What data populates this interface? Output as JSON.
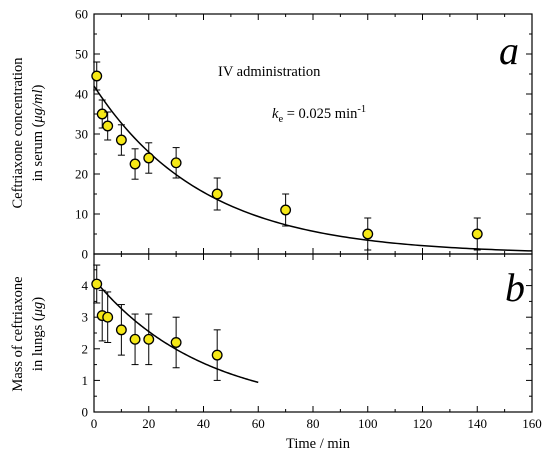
{
  "chart_data": [
    {
      "panel": "a",
      "type": "scatter",
      "panel_label": "a",
      "annotation": "IV administration",
      "rate_label": {
        "symbol": "k",
        "subscript": "e",
        "text": " = 0.025 min",
        "superscript": "-1"
      },
      "ylabel_lines": [
        "Ceftriaxone concentration",
        "in serum (",
        "μg/ml",
        ")"
      ],
      "xlim": [
        0,
        160
      ],
      "ylim": [
        0,
        60
      ],
      "xticks": [
        0,
        20,
        40,
        60,
        80,
        100,
        120,
        140,
        160
      ],
      "yticks": [
        0,
        10,
        20,
        30,
        40,
        50,
        60
      ],
      "points": [
        {
          "x": 1,
          "y": 44.5,
          "err": 3.5
        },
        {
          "x": 3,
          "y": 35,
          "err": 3.5
        },
        {
          "x": 5,
          "y": 32,
          "err": 3.5
        },
        {
          "x": 10,
          "y": 28.5,
          "err": 3.8
        },
        {
          "x": 15,
          "y": 22.5,
          "err": 3.8
        },
        {
          "x": 20,
          "y": 24,
          "err": 3.8
        },
        {
          "x": 30,
          "y": 22.8,
          "err": 3.8
        },
        {
          "x": 45,
          "y": 15,
          "err": 4
        },
        {
          "x": 70,
          "y": 11,
          "err": 4
        },
        {
          "x": 100,
          "y": 5,
          "err": 4
        },
        {
          "x": 140,
          "y": 5,
          "err": 4
        }
      ],
      "fit": {
        "model": "C0*exp(-ke*t)",
        "C0": 42,
        "ke": 0.025,
        "x_range": [
          0,
          160
        ]
      }
    },
    {
      "panel": "b",
      "type": "scatter",
      "panel_label": "b",
      "ylabel_lines": [
        "Mass of ceftriaxone",
        "in lungs (",
        "μg",
        ")"
      ],
      "xlabel": "Time / min",
      "xlim": [
        0,
        160
      ],
      "ylim": [
        0,
        5
      ],
      "xticks": [
        0,
        20,
        40,
        60,
        80,
        100,
        120,
        140,
        160
      ],
      "yticks": [
        0,
        1,
        2,
        3,
        4
      ],
      "points": [
        {
          "x": 1,
          "y": 4.05,
          "err": 0.6
        },
        {
          "x": 3,
          "y": 3.05,
          "err": 0.8
        },
        {
          "x": 5,
          "y": 3.0,
          "err": 0.8
        },
        {
          "x": 10,
          "y": 2.6,
          "err": 0.8
        },
        {
          "x": 15,
          "y": 2.3,
          "err": 0.8
        },
        {
          "x": 20,
          "y": 2.3,
          "err": 0.8
        },
        {
          "x": 30,
          "y": 2.2,
          "err": 0.8
        },
        {
          "x": 45,
          "y": 1.8,
          "err": 0.8
        }
      ],
      "fit": {
        "model": "M0*exp(-k*t)",
        "M0": 4.2,
        "k": 0.025,
        "x_range": [
          0,
          60
        ]
      }
    }
  ],
  "colors": {
    "marker_fill": "#f5e816",
    "ink": "#000000",
    "background": "#ffffff"
  }
}
